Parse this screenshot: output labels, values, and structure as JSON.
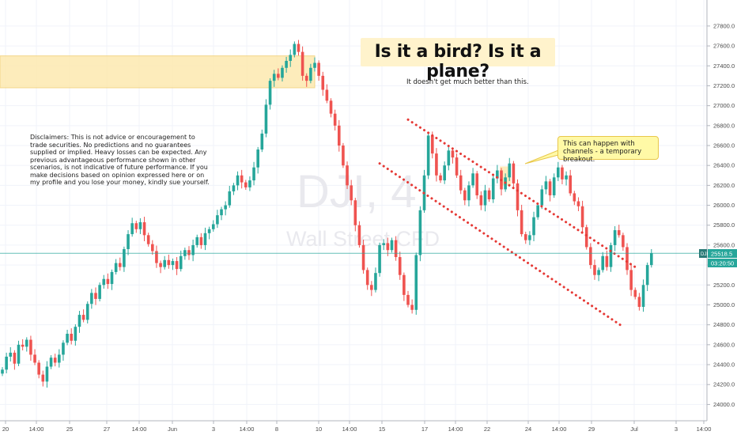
{
  "chart_data": {
    "type": "candlestick",
    "symbol": "DJI",
    "watermark_symbol": "DJI, 4",
    "watermark_name": "Wall Street CFD",
    "title": "Is it a bird? Is it a plane?",
    "subtitle": "It doesn't get much better than this.",
    "disclaimer": "Disclaimers: This is not advice or encouragement to trade securities. No predictions and no guarantees supplied or implied. Heavy losses can be expected. Any previous advantageous performance shown in other scenarios, is not indicative of future performance.  If you make decisions based on opinion expressed here or on my profile and you lose your money, kindly sue yourself.",
    "callout": "This can happen with channels - a temporary breakout.",
    "ylim": [
      23900,
      27950
    ],
    "y_ticks": [
      27800,
      27600,
      27400,
      27200,
      27000,
      26800,
      26600,
      26400,
      26200,
      26000,
      25800,
      25600,
      25400,
      25200,
      25000,
      24800,
      24600,
      24400,
      24200,
      24000
    ],
    "y_tick_labels": [
      "27800.0",
      "27600.0",
      "27400.0",
      "27200.0",
      "27000.0",
      "26800.0",
      "26600.0",
      "26400.0",
      "26200.0",
      "26000.0",
      "25800.0",
      "25600.0",
      "25400.0",
      "25200.0",
      "25000.0",
      "24800.0",
      "24600.0",
      "24400.0",
      "24200.0",
      "24000.0"
    ],
    "x_ticks": [
      "20",
      "14:00",
      "25",
      "27",
      "14:00",
      "Jun",
      "3",
      "14:00",
      "8",
      "10",
      "14:00",
      "15",
      "17",
      "14:00",
      "22",
      "24",
      "14:00",
      "29",
      "Jul",
      "3",
      "14:00"
    ],
    "last_price": "25518.5",
    "countdown": "03:20:50",
    "price_line": 25518.5,
    "resistance_zone": [
      27180,
      27500
    ],
    "channel_upper": [
      {
        "i": 100,
        "v": 26860
      },
      {
        "i": 156,
        "v": 25380
      }
    ],
    "channel_lower": [
      {
        "i": 93,
        "v": 26420
      },
      {
        "i": 153,
        "v": 24780
      }
    ],
    "colors": {
      "up": "#26a69a",
      "down": "#ef5350",
      "channel": "#e53935",
      "zone": "#fde9b0",
      "price_line": "#26a69a",
      "grid": "#f0f3fa"
    },
    "closes": [
      24350,
      24480,
      24520,
      24410,
      24600,
      24580,
      24650,
      24500,
      24420,
      24300,
      24230,
      24380,
      24470,
      24420,
      24500,
      24620,
      24710,
      24640,
      24780,
      24900,
      24850,
      25010,
      25120,
      25060,
      25200,
      25260,
      25210,
      25330,
      25420,
      25380,
      25560,
      25710,
      25820,
      25760,
      25830,
      25700,
      25610,
      25540,
      25420,
      25380,
      25450,
      25400,
      25440,
      25360,
      25490,
      25550,
      25500,
      25600,
      25680,
      25600,
      25720,
      25760,
      25810,
      25900,
      25960,
      26000,
      26140,
      26200,
      26300,
      26230,
      26180,
      26250,
      26380,
      26560,
      26720,
      27010,
      27250,
      27320,
      27280,
      27380,
      27450,
      27510,
      27620,
      27540,
      27300,
      27250,
      27380,
      27430,
      27300,
      27160,
      27050,
      26920,
      26800,
      26600,
      26400,
      26200,
      26050,
      25800,
      25600,
      25350,
      25200,
      25150,
      25320,
      25600,
      25620,
      25550,
      25650,
      25480,
      25300,
      25100,
      25000,
      24950,
      25500,
      25950,
      26300,
      26700,
      26520,
      26300,
      26250,
      26400,
      26550,
      26480,
      26300,
      26150,
      26050,
      26200,
      26320,
      26100,
      26000,
      26150,
      26060,
      26270,
      26350,
      26160,
      26280,
      26420,
      26220,
      25950,
      25710,
      25650,
      25700,
      25880,
      26000,
      26160,
      26240,
      26100,
      26280,
      26380,
      26260,
      26300,
      26120,
      26040,
      25990,
      25780,
      25580,
      25400,
      25300,
      25350,
      25490,
      25380,
      25600,
      25750,
      25700,
      25580,
      25350,
      25150,
      25080,
      24980,
      25200,
      25400,
      25520
    ]
  }
}
